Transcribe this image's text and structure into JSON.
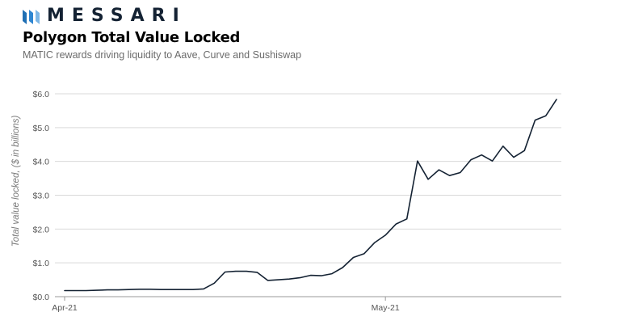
{
  "brand": {
    "name": "MESSARI",
    "icon": "messari-logo-icon",
    "color": "#142233"
  },
  "title": "Polygon Total Value Locked",
  "subtitle": "MATIC rewards driving liquidity to Aave, Curve and Sushiswap",
  "chart_data": {
    "type": "line",
    "title": "Polygon Total Value Locked",
    "subtitle": "MATIC rewards driving liquidity to Aave, Curve and Sushiswap",
    "xlabel": "",
    "ylabel": "Total value locked, ($ in billions)",
    "ylim": [
      0,
      6
    ],
    "y_ticks": [
      "$0.0",
      "$1.0",
      "$2.0",
      "$3.0",
      "$4.0",
      "$5.0",
      "$6.0"
    ],
    "x_ticks": [
      {
        "label": "Apr-21",
        "date": "2021-04-01"
      },
      {
        "label": "May-21",
        "date": "2021-05-01"
      }
    ],
    "grid": true,
    "line_color": "#142233",
    "x_range": [
      "2021-04-01",
      "2021-05-17"
    ],
    "series": [
      {
        "x": [
          "2021-04-01",
          "2021-04-02",
          "2021-04-03",
          "2021-04-04",
          "2021-04-05",
          "2021-04-06",
          "2021-04-07",
          "2021-04-08",
          "2021-04-09",
          "2021-04-10",
          "2021-04-11",
          "2021-04-12",
          "2021-04-13",
          "2021-04-14",
          "2021-04-15",
          "2021-04-16",
          "2021-04-17",
          "2021-04-18",
          "2021-04-19",
          "2021-04-20",
          "2021-04-21",
          "2021-04-22",
          "2021-04-23",
          "2021-04-24",
          "2021-04-25",
          "2021-04-26",
          "2021-04-27",
          "2021-04-28",
          "2021-04-29",
          "2021-04-30",
          "2021-05-01",
          "2021-05-02",
          "2021-05-03",
          "2021-05-04",
          "2021-05-05",
          "2021-05-06",
          "2021-05-07",
          "2021-05-08",
          "2021-05-09",
          "2021-05-10",
          "2021-05-11",
          "2021-05-12",
          "2021-05-13",
          "2021-05-14",
          "2021-05-15",
          "2021-05-16",
          "2021-05-17"
        ],
        "values": [
          0.18,
          0.18,
          0.18,
          0.19,
          0.2,
          0.2,
          0.21,
          0.22,
          0.22,
          0.21,
          0.21,
          0.21,
          0.21,
          0.23,
          0.4,
          0.73,
          0.75,
          0.75,
          0.72,
          0.48,
          0.5,
          0.52,
          0.56,
          0.63,
          0.62,
          0.68,
          0.86,
          1.16,
          1.27,
          1.6,
          1.82,
          2.15,
          2.3,
          4.01,
          3.47,
          3.75,
          3.58,
          3.67,
          4.05,
          4.19,
          4.01,
          4.45,
          4.12,
          4.32,
          5.22,
          5.35,
          5.83
        ]
      }
    ]
  }
}
